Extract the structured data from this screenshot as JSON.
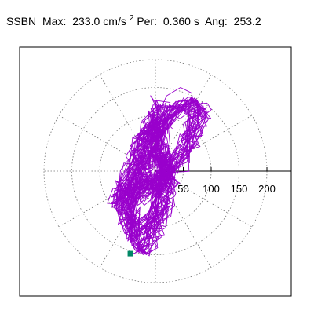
{
  "header": {
    "station": "SSBN",
    "max_label": "Max:",
    "max_value": "233.0",
    "max_unit": "cm/s",
    "max_unit_exp": "2",
    "per_label": "Per:",
    "per_value": "0.360 s",
    "ang_label": "Ang:",
    "ang_value": "253.2"
  },
  "chart_data": {
    "type": "line",
    "subtype": "polar-orbit",
    "radial_rings": [
      50,
      100,
      150,
      200
    ],
    "radial_tick_labels": [
      "50",
      "100",
      "150",
      "200"
    ],
    "grid": true,
    "grid_style": "dotted",
    "orbit_color": "#9900cc",
    "end_marker_color": "#008866",
    "end_marker": {
      "x": -45,
      "y": -148
    },
    "envelope_points": [
      {
        "x": -20,
        "y": 55
      },
      {
        "x": 0,
        "y": 90
      },
      {
        "x": 20,
        "y": 135
      },
      {
        "x": 45,
        "y": 150
      },
      {
        "x": 65,
        "y": 140
      },
      {
        "x": 70,
        "y": 110
      },
      {
        "x": 62,
        "y": 70
      },
      {
        "x": 55,
        "y": 40
      },
      {
        "x": 35,
        "y": 10
      },
      {
        "x": 30,
        "y": -15
      },
      {
        "x": 20,
        "y": -45
      },
      {
        "x": 0,
        "y": -80
      },
      {
        "x": -15,
        "y": -105
      },
      {
        "x": -35,
        "y": -118
      },
      {
        "x": -55,
        "y": -112
      },
      {
        "x": -65,
        "y": -85
      },
      {
        "x": -70,
        "y": -45
      },
      {
        "x": -60,
        "y": -10
      },
      {
        "x": -45,
        "y": 25
      }
    ],
    "max_acceleration": 233.0,
    "unit": "cm/s2",
    "period_s": 0.36,
    "angle_deg": 253.2
  }
}
